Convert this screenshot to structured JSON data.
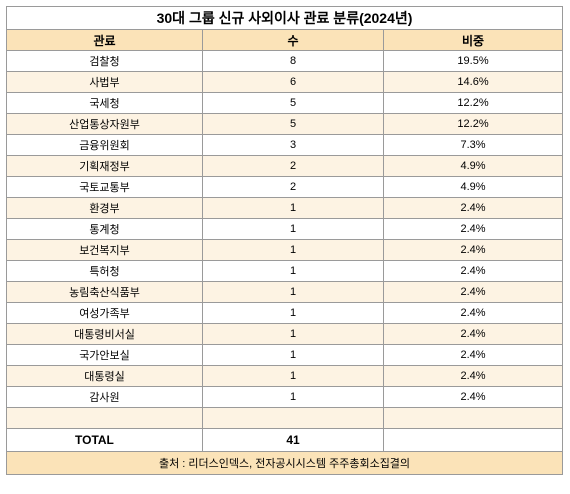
{
  "title": "30대 그룹 신규 사외이사 관료 분류(2024년)",
  "headers": {
    "name": "관료",
    "count": "수",
    "ratio": "비중"
  },
  "rows": [
    {
      "name": "검찰청",
      "count": "8",
      "ratio": "19.5%"
    },
    {
      "name": "사법부",
      "count": "6",
      "ratio": "14.6%"
    },
    {
      "name": "국세청",
      "count": "5",
      "ratio": "12.2%"
    },
    {
      "name": "산업통상자원부",
      "count": "5",
      "ratio": "12.2%"
    },
    {
      "name": "금융위원회",
      "count": "3",
      "ratio": "7.3%"
    },
    {
      "name": "기획재정부",
      "count": "2",
      "ratio": "4.9%"
    },
    {
      "name": "국토교통부",
      "count": "2",
      "ratio": "4.9%"
    },
    {
      "name": "환경부",
      "count": "1",
      "ratio": "2.4%"
    },
    {
      "name": "통계청",
      "count": "1",
      "ratio": "2.4%"
    },
    {
      "name": "보건복지부",
      "count": "1",
      "ratio": "2.4%"
    },
    {
      "name": "특허청",
      "count": "1",
      "ratio": "2.4%"
    },
    {
      "name": "농림축산식품부",
      "count": "1",
      "ratio": "2.4%"
    },
    {
      "name": "여성가족부",
      "count": "1",
      "ratio": "2.4%"
    },
    {
      "name": "대통령비서실",
      "count": "1",
      "ratio": "2.4%"
    },
    {
      "name": "국가안보실",
      "count": "1",
      "ratio": "2.4%"
    },
    {
      "name": "대통령실",
      "count": "1",
      "ratio": "2.4%"
    },
    {
      "name": "감사원",
      "count": "1",
      "ratio": "2.4%"
    },
    {
      "name": "",
      "count": "",
      "ratio": ""
    }
  ],
  "total": {
    "label": "TOTAL",
    "count": "41"
  },
  "source": "출처 : 리더스인덱스, 전자공시시스템 주주총회소집결의"
}
